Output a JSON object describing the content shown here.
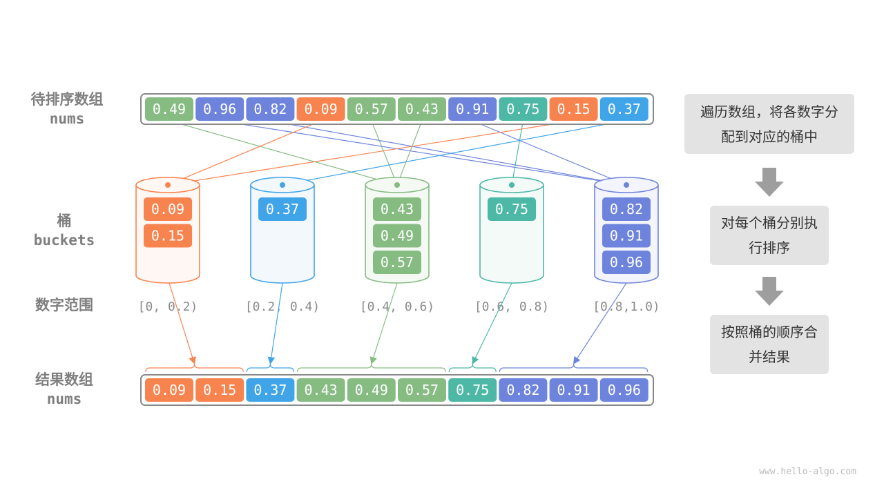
{
  "labels": {
    "input": "待排序数组",
    "input_sub": "nums",
    "buckets": "桶",
    "buckets_sub": "buckets",
    "ranges": "数字范围",
    "output": "结果数组",
    "output_sub": "nums"
  },
  "input": [
    "0.49",
    "0.96",
    "0.82",
    "0.09",
    "0.57",
    "0.43",
    "0.91",
    "0.75",
    "0.15",
    "0.37"
  ],
  "buckets": [
    {
      "items": [
        "0.09",
        "0.15"
      ],
      "range": "[0, 0.2)",
      "color": "#f7834f",
      "fill": "#fff7f4"
    },
    {
      "items": [
        "0.37"
      ],
      "range": "[0.2, 0.4)",
      "color": "#40a4e8",
      "fill": "#f3f8fc"
    },
    {
      "items": [
        "0.43",
        "0.49",
        "0.57"
      ],
      "range": "[0.4, 0.6)",
      "color": "#86bc82",
      "fill": "#f5f9f4"
    },
    {
      "items": [
        "0.75"
      ],
      "range": "[0.6, 0.8)",
      "color": "#4db8a6",
      "fill": "#f3faf8"
    },
    {
      "items": [
        "0.82",
        "0.91",
        "0.96"
      ],
      "range": "[0.8,1.0)",
      "color": "#6e84dc",
      "fill": "#f4f5fc"
    }
  ],
  "output": [
    "0.09",
    "0.15",
    "0.37",
    "0.43",
    "0.49",
    "0.57",
    "0.75",
    "0.82",
    "0.91",
    "0.96"
  ],
  "steps": [
    "遍历数组，将各数字分配到对应的桶中",
    "对每个桶分别执行排序",
    "按照桶的顺序合并结果"
  ],
  "watermark": "www.hello-algo.com"
}
